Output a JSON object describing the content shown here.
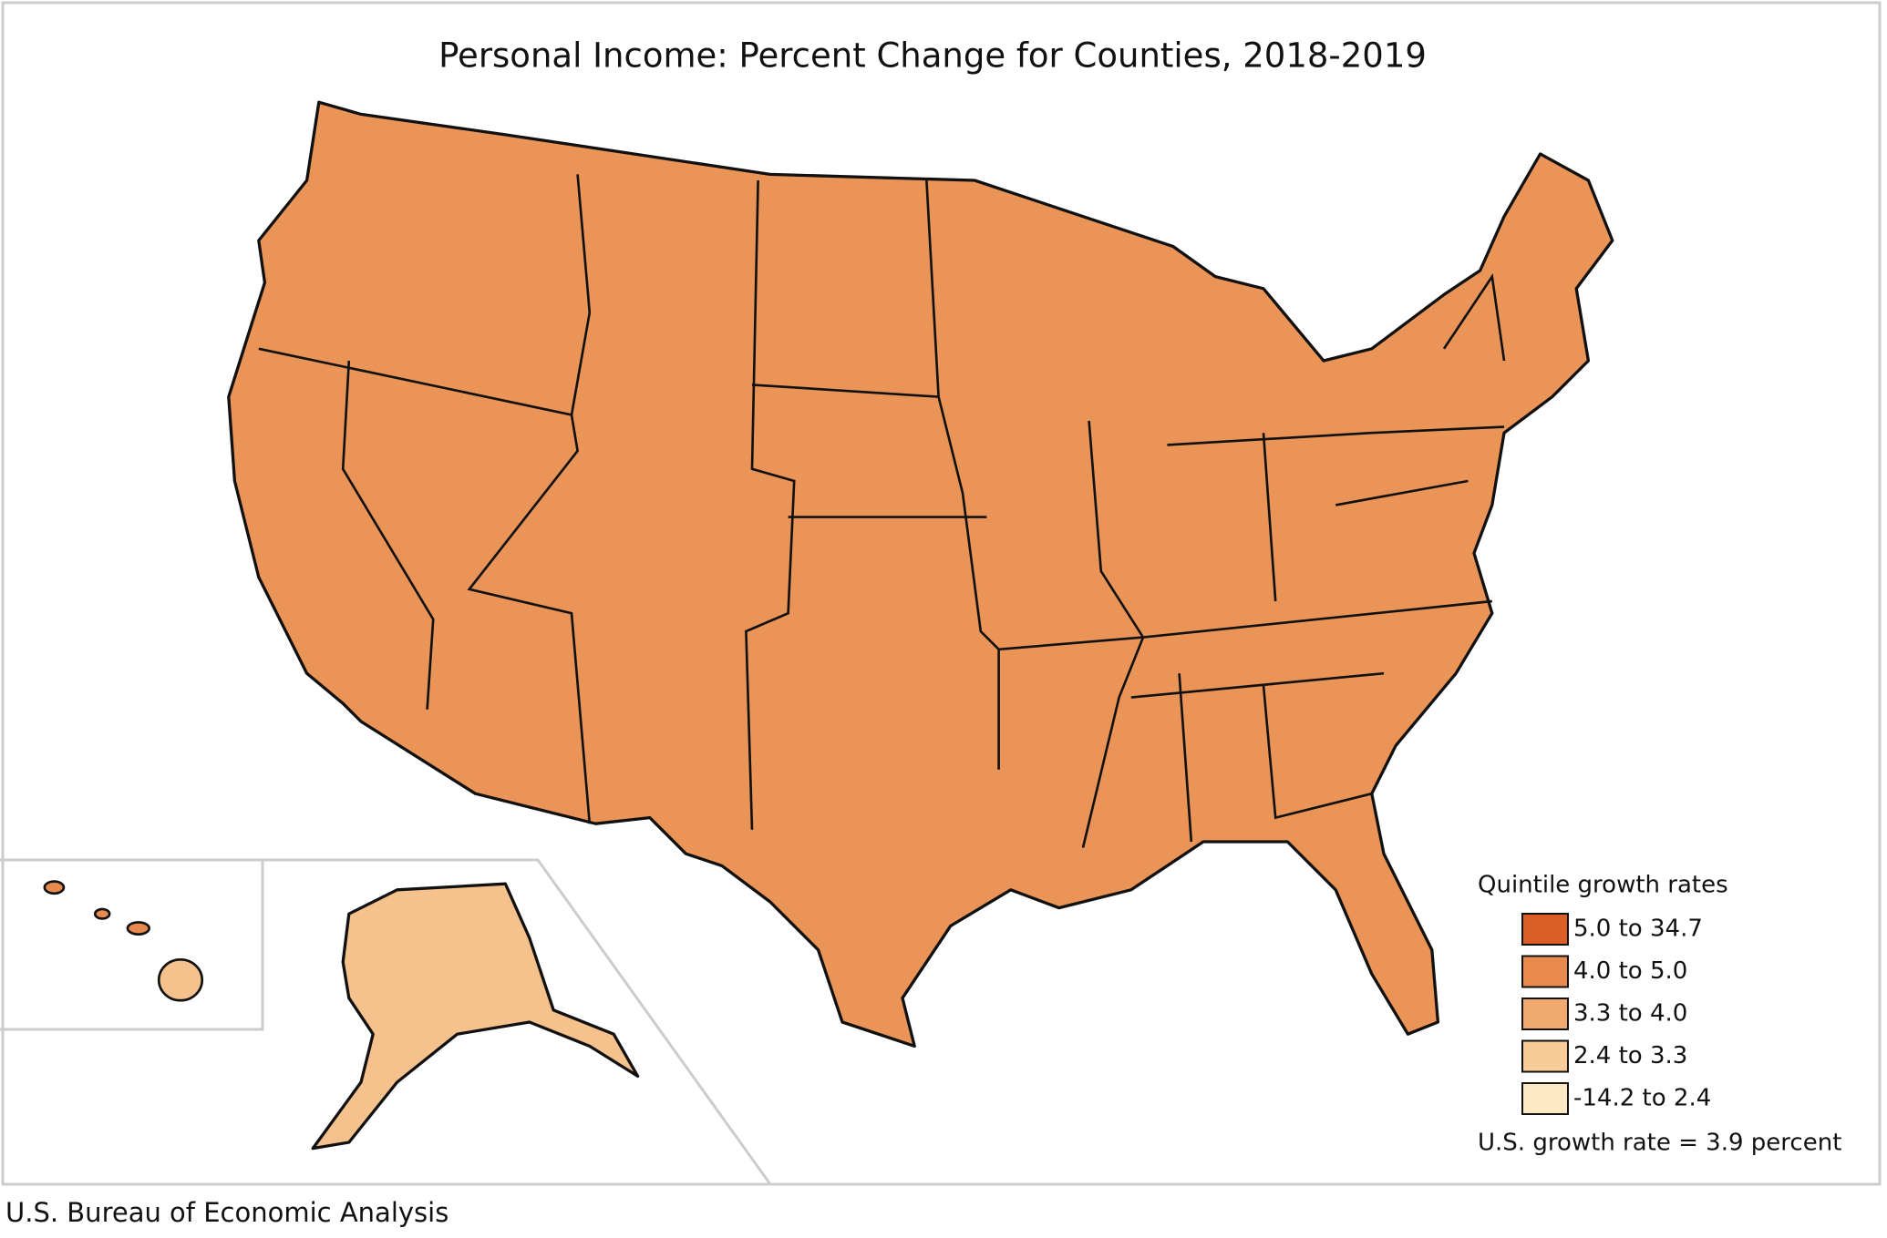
{
  "title": "Personal Income: Percent Change for Counties, 2018-2019",
  "legend": {
    "title": "Quintile growth rates",
    "items": [
      {
        "label": "5.0 to 34.7",
        "color": "#d95f26"
      },
      {
        "label": "4.0 to 5.0",
        "color": "#e8894d"
      },
      {
        "label": "3.3 to 4.0",
        "color": "#f0aa6f"
      },
      {
        "label": "2.4 to 3.3",
        "color": "#f7cc98"
      },
      {
        "label": "-14.2 to 2.4",
        "color": "#fde8c4"
      }
    ]
  },
  "note": "U.S. growth rate = 3.9 percent",
  "source": "U.S. Bureau of Economic Analysis"
}
